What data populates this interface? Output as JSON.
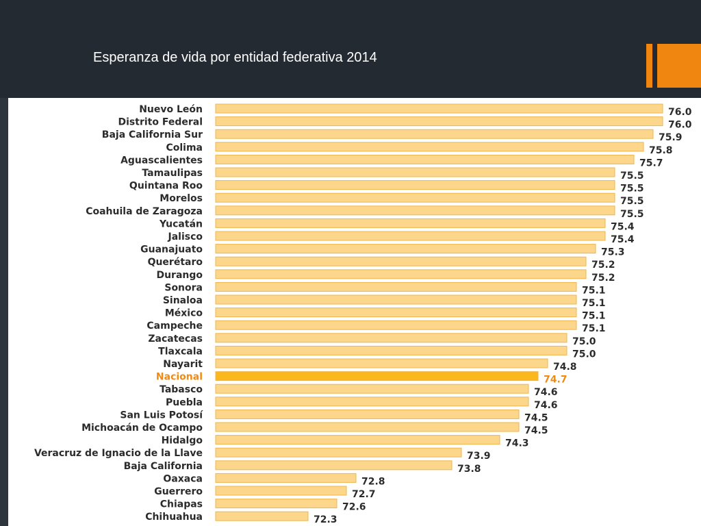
{
  "slide": {
    "title": "Esperanza de vida por entidad federativa 2014"
  },
  "colors": {
    "background": "#242a31",
    "accent": "#f0860f",
    "bar_fill": "#fcd68a",
    "bar_stroke": "#efb54e",
    "highlight_fill": "#fbb81c",
    "highlight_text": "#f08a12"
  },
  "chart_data": {
    "type": "bar",
    "orientation": "horizontal",
    "categories": [
      "Nuevo León",
      "Distrito Federal",
      "Baja California Sur",
      "Colima",
      "Aguascalientes",
      "Tamaulipas",
      "Quintana Roo",
      "Morelos",
      "Coahuila de Zaragoza",
      "Yucatán",
      "Jalisco",
      "Guanajuato",
      "Querétaro",
      "Durango",
      "Sonora",
      "Sinaloa",
      "México",
      "Campeche",
      "Zacatecas",
      "Tlaxcala",
      "Nayarit",
      "Nacional",
      "Tabasco",
      "Puebla",
      "San Luis Potosí",
      "Michoacán de Ocampo",
      "Hidalgo",
      "Veracruz de Ignacio de la Llave",
      "Baja California",
      "Oaxaca",
      "Guerrero",
      "Chiapas",
      "Chihuahua"
    ],
    "values": [
      76.0,
      76.0,
      75.9,
      75.8,
      75.7,
      75.5,
      75.5,
      75.5,
      75.5,
      75.4,
      75.4,
      75.3,
      75.2,
      75.2,
      75.1,
      75.1,
      75.1,
      75.1,
      75.0,
      75.0,
      74.8,
      74.7,
      74.6,
      74.6,
      74.5,
      74.5,
      74.3,
      73.9,
      73.8,
      72.8,
      72.7,
      72.6,
      72.3
    ],
    "value_labels": [
      "76.0",
      "76.0",
      "75.9",
      "75.8",
      "75.7",
      "75.5",
      "75.5",
      "75.5",
      "75.5",
      "75.4",
      "75.4",
      "75.3",
      "75.2",
      "75.2",
      "75.1",
      "75.1",
      "75.1",
      "75.1",
      "75.0",
      "75.0",
      "74.8",
      "74.7",
      "74.6",
      "74.6",
      "74.5",
      "74.5",
      "74.3",
      "73.9",
      "73.8",
      "72.8",
      "72.7",
      "72.6",
      "72.3"
    ],
    "highlight": "Nacional",
    "axis_visible": false,
    "grid": false,
    "legend": "none"
  }
}
